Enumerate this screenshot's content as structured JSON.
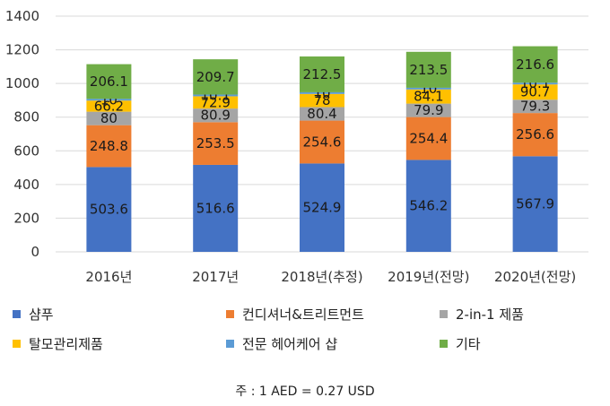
{
  "chart_data": {
    "type": "bar",
    "stacked": true,
    "categories": [
      "2016년",
      "2017년",
      "2018년(추정)",
      "2019년(전망)",
      "2020년(전망)"
    ],
    "ylim": [
      0,
      1400
    ],
    "yticks": [
      0,
      200,
      400,
      600,
      800,
      1000,
      1200,
      1400
    ],
    "grid": true,
    "legend_position": "bottom",
    "series": [
      {
        "name": "샴푸",
        "color": "#4472C4",
        "values": [
          503.6,
          516.6,
          524.9,
          546.2,
          567.9
        ],
        "labels": [
          "503.6",
          "516.6",
          "524.9",
          "546.2",
          "567.9"
        ]
      },
      {
        "name": "컨디셔너&트리트먼트",
        "color": "#ED7D31",
        "values": [
          248.8,
          253.5,
          254.6,
          254.4,
          256.6
        ],
        "labels": [
          "248.8",
          "253.5",
          "254.6",
          "254.4",
          "256.6"
        ]
      },
      {
        "name": "2-in-1 제품",
        "color": "#A5A5A5",
        "values": [
          80,
          80.9,
          80.4,
          79.9,
          79.3
        ],
        "labels": [
          "80",
          "80.9",
          "80.4",
          "79.9",
          "79.3"
        ]
      },
      {
        "name": "탈모관리제품",
        "color": "#FFC000",
        "values": [
          66.2,
          72.9,
          78,
          84.1,
          90.7
        ],
        "labels": [
          "66.2",
          "72.9",
          "78",
          "84.1",
          "90.7"
        ]
      },
      {
        "name": "전문 헤어케어 샵",
        "color": "#5B9BD5",
        "values": [
          10,
          10.1,
          10,
          10,
          10.1
        ],
        "labels": [
          "10",
          "10.1",
          "10",
          "10",
          "10.1"
        ]
      },
      {
        "name": "기타",
        "color": "#70AD47",
        "values": [
          206.1,
          209.7,
          212.5,
          213.5,
          216.6
        ],
        "labels": [
          "206.1",
          "209.7",
          "212.5",
          "213.5",
          "216.6"
        ]
      }
    ],
    "note": "주 : 1 AED = 0.27 USD"
  }
}
